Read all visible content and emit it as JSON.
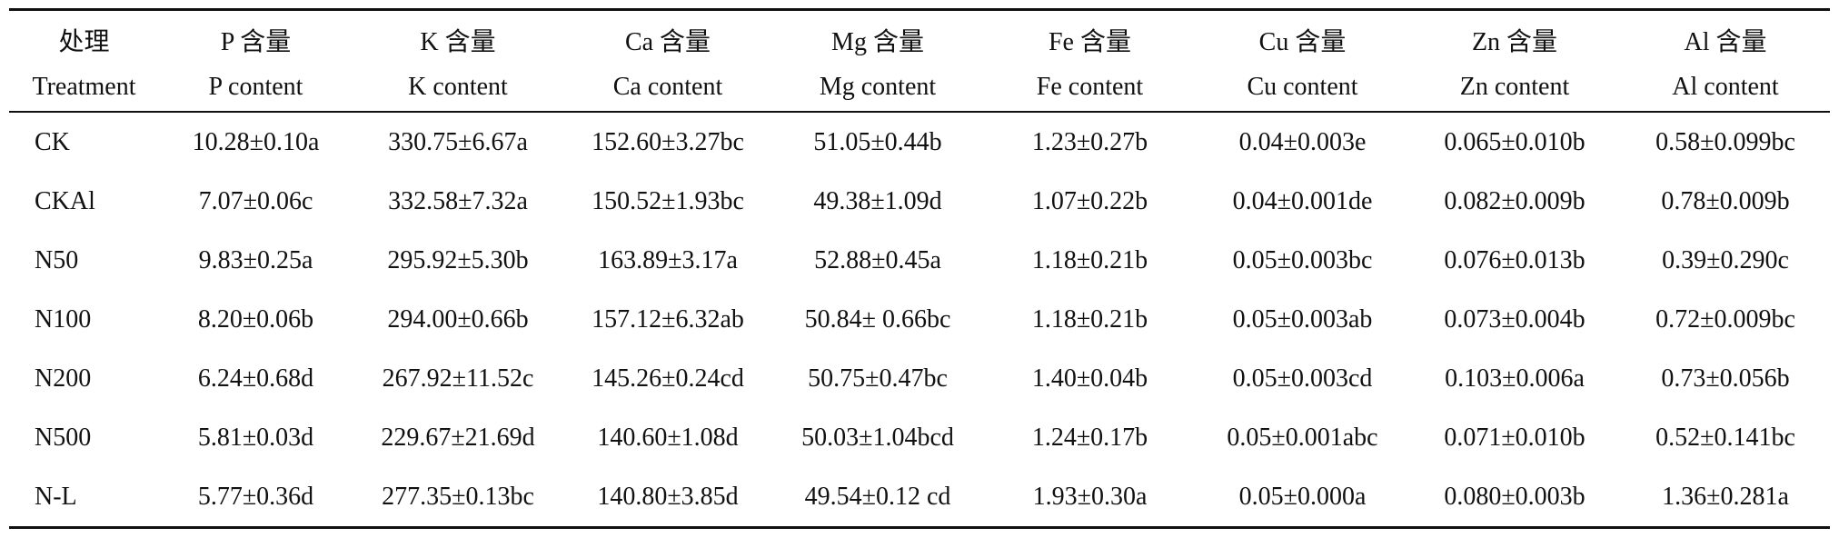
{
  "table": {
    "header_zh": [
      "处理",
      "P 含量",
      "K 含量",
      "Ca 含量",
      "Mg 含量",
      "Fe 含量",
      "Cu 含量",
      "Zn 含量",
      "Al 含量"
    ],
    "header_en": [
      "Treatment",
      "P content",
      "K content",
      "Ca content",
      "Mg content",
      "Fe content",
      "Cu content",
      "Zn content",
      "Al content"
    ],
    "rows": [
      [
        "CK",
        "10.28±0.10a",
        "330.75±6.67a",
        "152.60±3.27bc",
        "51.05±0.44b",
        "1.23±0.27b",
        "0.04±0.003e",
        "0.065±0.010b",
        "0.58±0.099bc"
      ],
      [
        "CKAl",
        "7.07±0.06c",
        "332.58±7.32a",
        "150.52±1.93bc",
        "49.38±1.09d",
        "1.07±0.22b",
        "0.04±0.001de",
        "0.082±0.009b",
        "0.78±0.009b"
      ],
      [
        "N50",
        "9.83±0.25a",
        "295.92±5.30b",
        "163.89±3.17a",
        "52.88±0.45a",
        "1.18±0.21b",
        "0.05±0.003bc",
        "0.076±0.013b",
        "0.39±0.290c"
      ],
      [
        "N100",
        "8.20±0.06b",
        "294.00±0.66b",
        "157.12±6.32ab",
        "50.84± 0.66bc",
        "1.18±0.21b",
        "0.05±0.003ab",
        "0.073±0.004b",
        "0.72±0.009bc"
      ],
      [
        "N200",
        "6.24±0.68d",
        "267.92±11.52c",
        "145.26±0.24cd",
        "50.75±0.47bc",
        "1.40±0.04b",
        "0.05±0.003cd",
        "0.103±0.006a",
        "0.73±0.056b"
      ],
      [
        "N500",
        "5.81±0.03d",
        "229.67±21.69d",
        "140.60±1.08d",
        "50.03±1.04bcd",
        "1.24±0.17b",
        "0.05±0.001abc",
        "0.071±0.010b",
        "0.52±0.141bc"
      ],
      [
        "N-L",
        "5.77±0.36d",
        "277.35±0.13bc",
        "140.80±3.85d",
        "49.54±0.12 cd",
        "1.93±0.30a",
        "0.05±0.000a",
        "0.080±0.003b",
        "1.36±0.281a"
      ]
    ]
  }
}
